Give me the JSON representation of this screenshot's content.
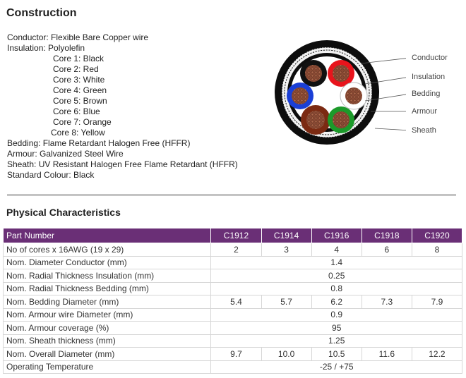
{
  "construction": {
    "title": "Construction",
    "conductor": "Conductor: Flexible Bare Copper wire",
    "insulation": "Insulation: Polyolefin",
    "cores": [
      "Core 1: Black",
      "Core 2: Red",
      "Core 3: White",
      "Core 4: Green",
      "Core 5: Brown",
      "Core 6: Blue",
      "Core 7: Orange",
      "Core 8: Yellow"
    ],
    "bedding": "Bedding: Flame Retardant Halogen Free (HFFR)",
    "armour": "Armour: Galvanized Steel Wire",
    "sheath": "Sheath: UV Resistant Halogen Free Flame Retardant (HFFR)",
    "standard_colour": "Standard Colour: Black"
  },
  "diagram": {
    "callouts": [
      "Conductor",
      "Insulation",
      "Bedding",
      "Armour",
      "Sheath"
    ],
    "core_colors": {
      "black": "#111111",
      "red": "#e8141c",
      "white": "#ffffff",
      "green": "#1c9a2a",
      "brown": "#7b2a12",
      "blue": "#1a3fd6"
    },
    "copper_color": "#8a4a34"
  },
  "physical": {
    "title": "Physical Characteristics",
    "header_color": "#6a2f76",
    "columns": [
      "Part Number",
      "C1912",
      "C1914",
      "C1916",
      "C1918",
      "C1920"
    ],
    "rows": [
      {
        "label": "No of cores x 16AWG (19 x 29)",
        "values": [
          "2",
          "3",
          "4",
          "6",
          "8"
        ]
      },
      {
        "label": "Nom. Diameter Conductor (mm)",
        "common": "1.4"
      },
      {
        "label": "Nom. Radial Thickness Insulation (mm)",
        "common": "0.25"
      },
      {
        "label": "Nom. Radial Thickness Bedding (mm)",
        "common": "0.8"
      },
      {
        "label": "Nom. Bedding Diameter (mm)",
        "values": [
          "5.4",
          "5.7",
          "6.2",
          "7.3",
          "7.9"
        ]
      },
      {
        "label": "Nom. Armour wire Diameter (mm)",
        "common": "0.9"
      },
      {
        "label": "Nom. Armour coverage (%)",
        "common": "95"
      },
      {
        "label": "Nom. Sheath thickness (mm)",
        "common": "1.25"
      },
      {
        "label": "Nom. Overall Diameter (mm)",
        "values": [
          "9.7",
          "10.0",
          "10.5",
          "11.6",
          "12.2"
        ]
      },
      {
        "label": "Operating Temperature",
        "common": "-25 / +75"
      }
    ]
  }
}
